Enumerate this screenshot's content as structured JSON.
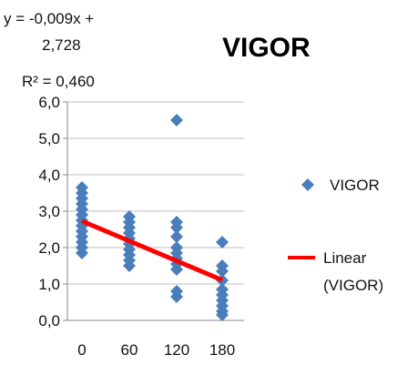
{
  "chart_data": {
    "type": "scatter",
    "title": "VIGOR",
    "xlabel": "",
    "ylabel": "",
    "xticks": [
      "0",
      "60",
      "120",
      "180"
    ],
    "yticks": [
      "0,0",
      "1,0",
      "2,0",
      "3,0",
      "4,0",
      "5,0",
      "6,0"
    ],
    "xlim": [
      0,
      180
    ],
    "ylim": [
      0,
      6
    ],
    "grid": "horizontal",
    "legend_position": "right",
    "series": [
      {
        "name": "VIGOR",
        "marker": "diamond",
        "color": "#4a7ebb",
        "points": [
          {
            "x": 0,
            "y": 3.65
          },
          {
            "x": 0,
            "y": 3.5
          },
          {
            "x": 0,
            "y": 3.35
          },
          {
            "x": 0,
            "y": 3.2
          },
          {
            "x": 0,
            "y": 3.05
          },
          {
            "x": 0,
            "y": 2.9
          },
          {
            "x": 0,
            "y": 2.75
          },
          {
            "x": 0,
            "y": 2.6
          },
          {
            "x": 0,
            "y": 2.45
          },
          {
            "x": 0,
            "y": 2.3
          },
          {
            "x": 0,
            "y": 2.15
          },
          {
            "x": 0,
            "y": 2.0
          },
          {
            "x": 0,
            "y": 1.85
          },
          {
            "x": 60,
            "y": 2.85
          },
          {
            "x": 60,
            "y": 2.7
          },
          {
            "x": 60,
            "y": 2.55
          },
          {
            "x": 60,
            "y": 2.4
          },
          {
            "x": 60,
            "y": 2.25
          },
          {
            "x": 60,
            "y": 2.1
          },
          {
            "x": 60,
            "y": 1.95
          },
          {
            "x": 60,
            "y": 1.8
          },
          {
            "x": 60,
            "y": 1.65
          },
          {
            "x": 60,
            "y": 1.5
          },
          {
            "x": 120,
            "y": 5.5
          },
          {
            "x": 120,
            "y": 2.7
          },
          {
            "x": 120,
            "y": 2.55
          },
          {
            "x": 120,
            "y": 2.3
          },
          {
            "x": 120,
            "y": 2.0
          },
          {
            "x": 120,
            "y": 1.85
          },
          {
            "x": 120,
            "y": 1.7
          },
          {
            "x": 120,
            "y": 1.55
          },
          {
            "x": 120,
            "y": 1.4
          },
          {
            "x": 120,
            "y": 0.8
          },
          {
            "x": 120,
            "y": 0.65
          },
          {
            "x": 180,
            "y": 2.15
          },
          {
            "x": 180,
            "y": 1.5
          },
          {
            "x": 180,
            "y": 1.35
          },
          {
            "x": 180,
            "y": 1.1
          },
          {
            "x": 180,
            "y": 0.85
          },
          {
            "x": 180,
            "y": 0.7
          },
          {
            "x": 180,
            "y": 0.55
          },
          {
            "x": 180,
            "y": 0.4
          },
          {
            "x": 180,
            "y": 0.25
          },
          {
            "x": 180,
            "y": 0.15
          }
        ]
      }
    ],
    "trendline": {
      "name": "Linear (VIGOR)",
      "color": "#ff0000",
      "slope": -0.009,
      "intercept": 2.728,
      "x_range": [
        0,
        180
      ]
    },
    "equation_lines": [
      "y = -0,009x +",
      "2,728",
      "R² = 0,460"
    ],
    "legend": [
      {
        "label": "VIGOR",
        "kind": "marker"
      },
      {
        "label_lines": [
          "Linear",
          "(VIGOR)"
        ],
        "kind": "line"
      }
    ]
  }
}
